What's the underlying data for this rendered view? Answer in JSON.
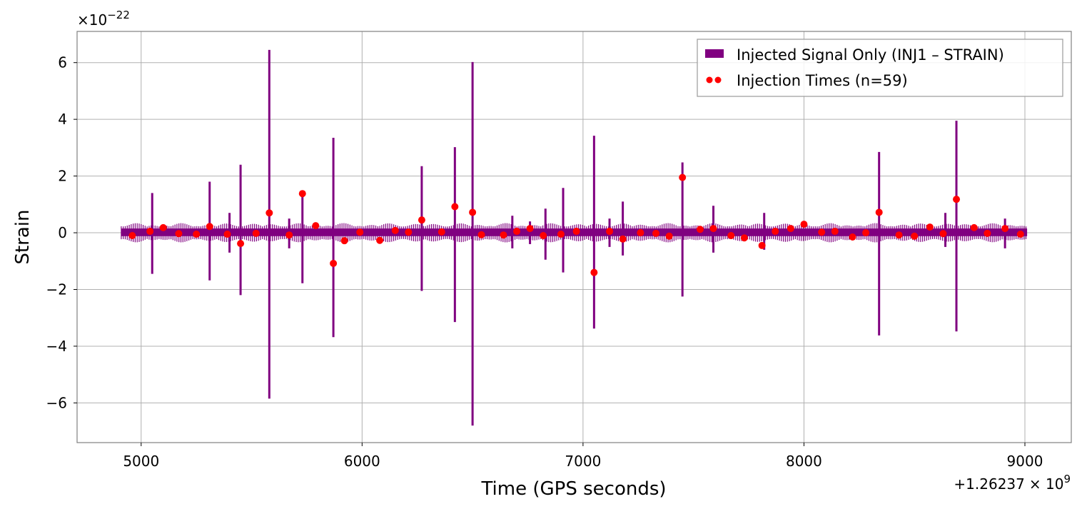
{
  "chart_data": {
    "type": "line",
    "xlabel": "Time (GPS seconds)",
    "ylabel": "Strain",
    "y_scale_label": "×10",
    "y_scale_exponent": "−22",
    "x_offset_label": "+1.26237",
    "x_offset_times": "× 10",
    "x_offset_exponent": "9",
    "xlim": [
      4710,
      9210
    ],
    "ylim": [
      -7.4,
      7.1
    ],
    "x_range_data": [
      4910,
      9010
    ],
    "grid": true,
    "legend_position": "top-right",
    "x_ticks": [
      {
        "value": 5000,
        "label": "5000"
      },
      {
        "value": 6000,
        "label": "6000"
      },
      {
        "value": 7000,
        "label": "7000"
      },
      {
        "value": 8000,
        "label": "8000"
      },
      {
        "value": 9000,
        "label": "9000"
      }
    ],
    "y_ticks": [
      {
        "value": 6,
        "label": "6"
      },
      {
        "value": 4,
        "label": "4"
      },
      {
        "value": 2,
        "label": "2"
      },
      {
        "value": 0,
        "label": "0"
      },
      {
        "value": -2,
        "label": "−2"
      },
      {
        "value": -4,
        "label": "−4"
      },
      {
        "value": -6,
        "label": "−6"
      }
    ],
    "series": [
      {
        "name": "Injected Signal Only (INJ1 – STRAIN)",
        "color": "#800080",
        "kind": "band",
        "baseline_band": [
          -0.12,
          0.15
        ],
        "spikes": [
          {
            "x": 5050,
            "top": 1.4,
            "bottom": -1.45
          },
          {
            "x": 5310,
            "top": 1.8,
            "bottom": -1.68
          },
          {
            "x": 5400,
            "top": 0.7,
            "bottom": -0.7
          },
          {
            "x": 5450,
            "top": 2.4,
            "bottom": -2.2
          },
          {
            "x": 5580,
            "top": 6.45,
            "bottom": -5.85
          },
          {
            "x": 5670,
            "top": 0.5,
            "bottom": -0.55
          },
          {
            "x": 5730,
            "top": 1.5,
            "bottom": -1.78
          },
          {
            "x": 5870,
            "top": 3.35,
            "bottom": -3.68
          },
          {
            "x": 6270,
            "top": 2.35,
            "bottom": -2.05
          },
          {
            "x": 6420,
            "top": 3.02,
            "bottom": -3.15
          },
          {
            "x": 6500,
            "top": 6.02,
            "bottom": -6.8
          },
          {
            "x": 6680,
            "top": 0.6,
            "bottom": -0.55
          },
          {
            "x": 6760,
            "top": 0.4,
            "bottom": -0.4
          },
          {
            "x": 6830,
            "top": 0.85,
            "bottom": -0.95
          },
          {
            "x": 6910,
            "top": 1.58,
            "bottom": -1.4
          },
          {
            "x": 7050,
            "top": 3.42,
            "bottom": -3.38
          },
          {
            "x": 7120,
            "top": 0.5,
            "bottom": -0.5
          },
          {
            "x": 7180,
            "top": 1.1,
            "bottom": -0.8
          },
          {
            "x": 7450,
            "top": 2.48,
            "bottom": -2.25
          },
          {
            "x": 7590,
            "top": 0.95,
            "bottom": -0.7
          },
          {
            "x": 7820,
            "top": 0.7,
            "bottom": -0.6
          },
          {
            "x": 8340,
            "top": 2.85,
            "bottom": -3.62
          },
          {
            "x": 8690,
            "top": 3.95,
            "bottom": -3.48
          },
          {
            "x": 8640,
            "top": 0.7,
            "bottom": -0.5
          },
          {
            "x": 8910,
            "top": 0.5,
            "bottom": -0.55
          }
        ]
      },
      {
        "name": "Injection Times (n=59)",
        "color": "#ff0000",
        "kind": "scatter",
        "points": [
          [
            4960,
            -0.1
          ],
          [
            5040,
            0.05
          ],
          [
            5100,
            0.18
          ],
          [
            5170,
            -0.03
          ],
          [
            5250,
            -0.05
          ],
          [
            5310,
            0.22
          ],
          [
            5390,
            -0.05
          ],
          [
            5450,
            -0.38
          ],
          [
            5520,
            -0.02
          ],
          [
            5580,
            0.7
          ],
          [
            5670,
            -0.08
          ],
          [
            5730,
            1.38
          ],
          [
            5790,
            0.25
          ],
          [
            5870,
            -1.08
          ],
          [
            5920,
            -0.28
          ],
          [
            5990,
            0.02
          ],
          [
            6080,
            -0.27
          ],
          [
            6150,
            0.08
          ],
          [
            6210,
            0.02
          ],
          [
            6270,
            0.45
          ],
          [
            6360,
            0.03
          ],
          [
            6420,
            0.92
          ],
          [
            6500,
            0.72
          ],
          [
            6540,
            -0.07
          ],
          [
            6640,
            -0.08
          ],
          [
            6700,
            0.05
          ],
          [
            6760,
            0.15
          ],
          [
            6820,
            -0.1
          ],
          [
            6900,
            -0.05
          ],
          [
            6970,
            0.05
          ],
          [
            7050,
            -1.4
          ],
          [
            7120,
            0.05
          ],
          [
            7180,
            -0.22
          ],
          [
            7260,
            0.0
          ],
          [
            7330,
            -0.02
          ],
          [
            7390,
            -0.12
          ],
          [
            7450,
            1.95
          ],
          [
            7530,
            0.12
          ],
          [
            7590,
            0.15
          ],
          [
            7670,
            -0.1
          ],
          [
            7730,
            -0.18
          ],
          [
            7810,
            -0.45
          ],
          [
            7870,
            0.05
          ],
          [
            7940,
            0.15
          ],
          [
            8000,
            0.3
          ],
          [
            8080,
            0.02
          ],
          [
            8140,
            0.05
          ],
          [
            8220,
            -0.15
          ],
          [
            8280,
            0.0
          ],
          [
            8340,
            0.72
          ],
          [
            8430,
            -0.08
          ],
          [
            8500,
            -0.12
          ],
          [
            8570,
            0.2
          ],
          [
            8630,
            -0.03
          ],
          [
            8690,
            1.18
          ],
          [
            8770,
            0.18
          ],
          [
            8830,
            -0.02
          ],
          [
            8910,
            0.15
          ],
          [
            8980,
            -0.05
          ]
        ]
      }
    ]
  }
}
